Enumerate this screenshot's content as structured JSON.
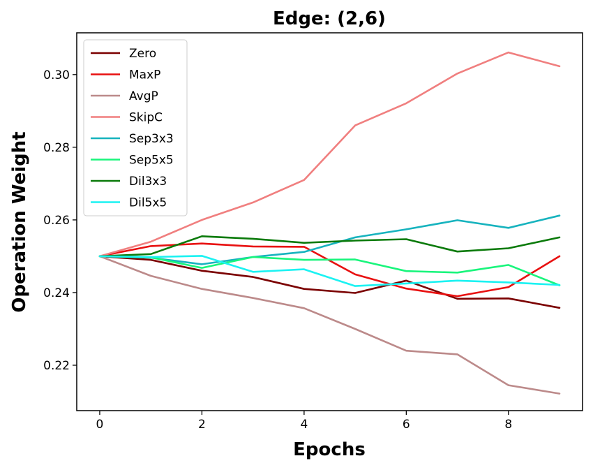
{
  "chart_data": {
    "type": "line",
    "title": "Edge: (2,6)",
    "xlabel": "Epochs",
    "ylabel": "Operation Weight",
    "xlim": [
      -0.45,
      9.45
    ],
    "ylim": [
      0.2075,
      0.3115
    ],
    "x": [
      0,
      1,
      2,
      3,
      4,
      5,
      6,
      7,
      8,
      9
    ],
    "xticks": [
      0,
      2,
      4,
      6,
      8
    ],
    "yticks": [
      0.22,
      0.24,
      0.26,
      0.28,
      0.3
    ],
    "ytick_labels": [
      "0.22",
      "0.24",
      "0.26",
      "0.28",
      "0.30"
    ],
    "xtick_labels": [
      "0",
      "2",
      "4",
      "6",
      "8"
    ],
    "grid": false,
    "legend_position": "top-left",
    "series": [
      {
        "name": "Zero",
        "color": "#7b0000",
        "values": [
          0.25,
          0.249,
          0.246,
          0.2443,
          0.241,
          0.2399,
          0.2433,
          0.2383,
          0.2384,
          0.2358
        ]
      },
      {
        "name": "MaxP",
        "color": "#e81010",
        "values": [
          0.25,
          0.2528,
          0.2535,
          0.2527,
          0.2526,
          0.245,
          0.2411,
          0.239,
          0.2415,
          0.25
        ]
      },
      {
        "name": "AvgP",
        "color": "#bc8a8a",
        "values": [
          0.25,
          0.2446,
          0.241,
          0.2385,
          0.2357,
          0.23,
          0.224,
          0.223,
          0.2145,
          0.2122
        ]
      },
      {
        "name": "SkipC",
        "color": "#f07f7f",
        "values": [
          0.25,
          0.254,
          0.26,
          0.2648,
          0.271,
          0.286,
          0.2921,
          0.3003,
          0.3061,
          0.3023
        ]
      },
      {
        "name": "Sep3x3",
        "color": "#17b3be",
        "values": [
          0.25,
          0.2496,
          0.2478,
          0.2498,
          0.2512,
          0.2552,
          0.2574,
          0.2599,
          0.2578,
          0.2612
        ]
      },
      {
        "name": "Sep5x5",
        "color": "#19f57c",
        "values": [
          0.25,
          0.2497,
          0.2468,
          0.2498,
          0.249,
          0.2491,
          0.2459,
          0.2455,
          0.2476,
          0.242
        ]
      },
      {
        "name": "Dil3x3",
        "color": "#0a7a0a",
        "values": [
          0.25,
          0.2506,
          0.2555,
          0.2548,
          0.2537,
          0.2543,
          0.2547,
          0.2513,
          0.2522,
          0.2552
        ]
      },
      {
        "name": "Dil5x5",
        "color": "#1bf2f2",
        "values": [
          0.25,
          0.2498,
          0.2501,
          0.2457,
          0.2464,
          0.2418,
          0.2425,
          0.2433,
          0.2428,
          0.2421
        ]
      }
    ]
  }
}
